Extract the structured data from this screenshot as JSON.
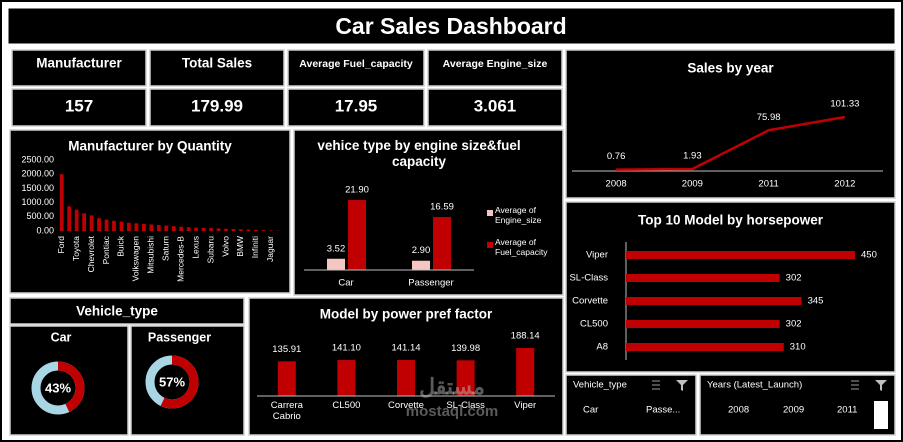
{
  "title": "Car Sales Dashboard",
  "kpis": [
    {
      "label": "Manufacturer",
      "value": 157
    },
    {
      "label": "Total Sales",
      "value": 179.99
    },
    {
      "label": "Average Fuel_capacity",
      "value": 17.95
    },
    {
      "label": "Average Engine_size",
      "value": 3.061
    }
  ],
  "chart_data": [
    {
      "type": "bar",
      "title": "Manufacturer by Quantity",
      "categories": [
        "Ford",
        null,
        "Toyota",
        null,
        "Chevrolet",
        null,
        "Pontiac",
        null,
        "Buick",
        null,
        "Volkswagen",
        null,
        "Mitsubishi",
        null,
        "Saturn",
        null,
        "Mercedes-B",
        null,
        "Lexus",
        null,
        "Subaru",
        null,
        "Volvo",
        null,
        "BMW",
        null,
        "Infiniti",
        null,
        "Jaguar",
        null
      ],
      "values": [
        2000,
        870,
        750,
        620,
        550,
        450,
        400,
        360,
        330,
        290,
        270,
        250,
        230,
        210,
        190,
        170,
        150,
        130,
        120,
        110,
        100,
        90,
        80,
        70,
        60,
        50,
        40,
        30,
        20,
        10
      ],
      "color": "#c00000",
      "ylim": [
        0,
        2500
      ],
      "yticks": [
        {
          "value": 0,
          "label": "0.00"
        },
        {
          "value": 500,
          "label": "500.00"
        },
        {
          "value": 1000,
          "label": "1000.00"
        },
        {
          "value": 1500,
          "label": "1500.00"
        },
        {
          "value": 2000,
          "label": "2000.00"
        },
        {
          "value": 2500,
          "label": "2500.00"
        }
      ]
    },
    {
      "type": "grouped_bar",
      "title": "vehice type by engine size&fuel capacity",
      "categories": [
        "Car",
        "Passenger"
      ],
      "series": [
        {
          "name": "Average of Engine_size",
          "color": "#f4c7c3",
          "values": [
            3.52,
            2.9
          ],
          "value_labels": [
            "3.52",
            "2.90"
          ]
        },
        {
          "name": "Average of Fuel_capacity",
          "color": "#c00000",
          "values": [
            21.9,
            16.59
          ],
          "value_labels": [
            "21.90",
            "16.59"
          ]
        }
      ],
      "legend": "right"
    },
    {
      "type": "line",
      "title": "Sales by year",
      "categories": [
        "2008",
        "2009",
        "2011",
        "2012"
      ],
      "values": [
        0.76,
        1.93,
        75.98,
        101.33
      ],
      "color": "#c00000"
    },
    {
      "type": "hbar",
      "title": "Top 10 Model by horsepower",
      "categories": [
        "Viper",
        "SL-Class",
        "Corvette",
        "CL500",
        "A8"
      ],
      "values": [
        450,
        302,
        345,
        302,
        310
      ],
      "color": "#c00000"
    },
    {
      "type": "bar",
      "title": "Model by power pref factor",
      "categories": [
        "Carrera Cabrio",
        "CL500",
        "Corvette",
        "SL-Class",
        "Viper"
      ],
      "values": [
        135.91,
        141.1,
        141.14,
        139.98,
        188.14
      ],
      "value_labels": [
        "135.91",
        "141.10",
        "141.14",
        "139.98",
        "188.14"
      ],
      "color": "#c00000"
    },
    {
      "type": "donut",
      "title": "Vehicle_type",
      "categories": [
        "Car",
        "Passenger"
      ],
      "values": [
        43,
        57
      ],
      "value_labels": [
        "43%",
        "57%"
      ],
      "color": "#c00000",
      "track_color": "#a9d6e5"
    }
  ],
  "slicers": [
    {
      "title": "Vehicle_type",
      "items": [
        "Car",
        "Passe..."
      ]
    },
    {
      "title": "Years (Latest_Launch)",
      "items": [
        "2008",
        "2009",
        "2011"
      ]
    }
  ],
  "watermark": {
    "arabic": "مستقل",
    "latin": "mostaql.com"
  }
}
